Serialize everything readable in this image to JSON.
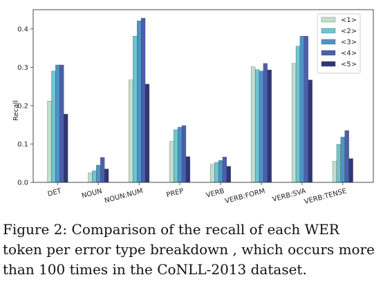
{
  "chart_data": {
    "type": "bar",
    "categories": [
      "DET",
      "NOUN",
      "NOUN:NUM",
      "PREP",
      "VERB",
      "VERB:FORM",
      "VERB:SVA",
      "VERB:TENSE"
    ],
    "series": [
      {
        "name": "<1>",
        "color": "#c2dfcc",
        "values": [
          0.212,
          0.025,
          0.267,
          0.107,
          0.047,
          0.301,
          0.31,
          0.055
        ]
      },
      {
        "name": "<2>",
        "color": "#6cc6d0",
        "values": [
          0.29,
          0.03,
          0.381,
          0.137,
          0.052,
          0.294,
          0.355,
          0.099
        ]
      },
      {
        "name": "<3>",
        "color": "#4d94c7",
        "values": [
          0.306,
          0.045,
          0.421,
          0.144,
          0.057,
          0.29,
          0.381,
          0.118
        ]
      },
      {
        "name": "<4>",
        "color": "#4a60ad",
        "values": [
          0.306,
          0.065,
          0.428,
          0.148,
          0.066,
          0.31,
          0.381,
          0.135
        ]
      },
      {
        "name": "<5>",
        "color": "#2f3777",
        "values": [
          0.178,
          0.035,
          0.256,
          0.067,
          0.042,
          0.293,
          0.267,
          0.062
        ]
      }
    ],
    "ylabel": "Recall",
    "ylim": [
      0,
      0.45
    ],
    "yticks": [
      "0.0",
      "0.1",
      "0.2",
      "0.3",
      "0.4"
    ],
    "legend_position": "top-right",
    "grid": false
  },
  "caption": "Figure 2: Comparison of the recall of each WER token per error type breakdown , which occurs more than 100 times in the CoNLL-2013 dataset."
}
